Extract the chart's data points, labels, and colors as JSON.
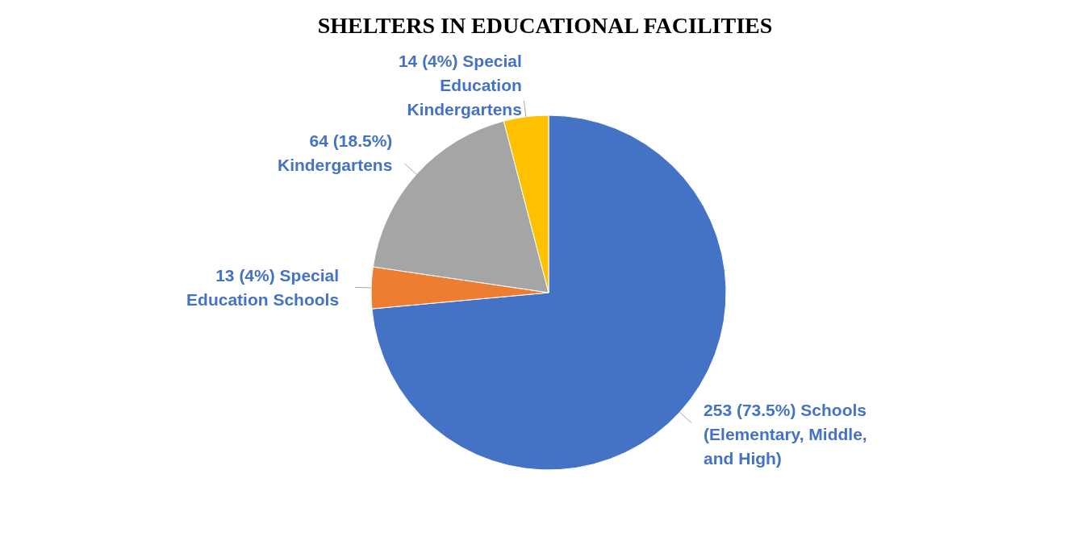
{
  "chart_data": {
    "type": "pie",
    "title": "SHELTERS IN EDUCATIONAL FACILITIES",
    "categories": [
      "Schools (Elementary, Middle, and High)",
      "Special Education Schools",
      "Kindergartens",
      "Special Education Kindergartens"
    ],
    "values": [
      253,
      13,
      64,
      14
    ],
    "colors": [
      "#4472c4",
      "#ed7d31",
      "#a5a5a5",
      "#ffc000"
    ],
    "value_labels": [
      "253 (73.5%)",
      "13 (4%)",
      "64 (18.5%)",
      "14 (4%)"
    ]
  }
}
